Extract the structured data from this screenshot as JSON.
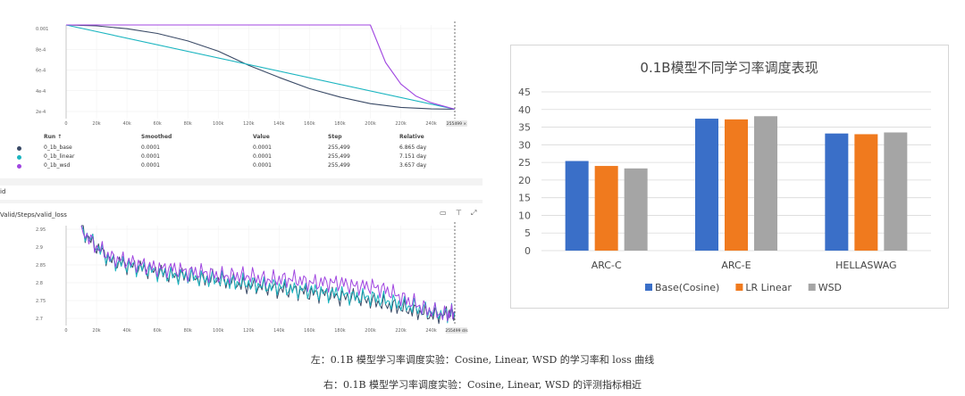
{
  "left": {
    "lr_chart": {
      "y_ticks": [
        "0.001",
        "8e-4",
        "6e-4",
        "4e-4",
        "2e-4"
      ],
      "x_ticks": [
        "0",
        "20k",
        "40k",
        "60k",
        "80k",
        "100k",
        "120k",
        "140k",
        "160k",
        "180k",
        "200k",
        "220k",
        "240k"
      ],
      "cursor_label": "255499 ×"
    },
    "table": {
      "headers": {
        "run": "Run ↑",
        "smoothed": "Smoothed",
        "value": "Value",
        "step": "Step",
        "relative": "Relative"
      },
      "rows": [
        {
          "run": "0_1b_base",
          "smoothed": "0.0001",
          "value": "0.0001",
          "step": "255,499",
          "relative": "6.865 day",
          "color": "#3a4a66"
        },
        {
          "run": "0_1b_linear",
          "smoothed": "0.0001",
          "value": "0.0001",
          "step": "255,499",
          "relative": "7.151 day",
          "color": "#1bb5c0"
        },
        {
          "run": "0_1b_wsd",
          "smoothed": "0.0001",
          "value": "0.0001",
          "step": "255,499",
          "relative": "3.657 day",
          "color": "#a046e0"
        }
      ]
    },
    "section_label": "id",
    "loss_chart": {
      "title": "Valid/Steps/valid_loss",
      "y_ticks": [
        "2.95",
        "2.9",
        "2.85",
        "2.8",
        "2.75",
        "2.7"
      ],
      "x_ticks": [
        "0",
        "20k",
        "40k",
        "60k",
        "80k",
        "100k",
        "120k",
        "140k",
        "160k",
        "180k",
        "200k",
        "220k",
        "240k"
      ],
      "cursor_label": "255499 d/s"
    }
  },
  "chart_data": [
    {
      "type": "line",
      "x_unit": "step",
      "xlim": [
        0,
        255499
      ],
      "ylim": [
        0,
        0.001
      ],
      "series": [
        {
          "name": "0_1b_base",
          "color": "#3a4a66",
          "x": [
            0,
            20000,
            40000,
            60000,
            80000,
            100000,
            120000,
            140000,
            160000,
            180000,
            200000,
            220000,
            240000,
            255499
          ],
          "y": [
            0.001,
            0.00099,
            0.00096,
            0.00091,
            0.00083,
            0.00072,
            0.00057,
            0.00044,
            0.00032,
            0.00023,
            0.00016,
            0.00012,
            0.000104,
            0.0001
          ]
        },
        {
          "name": "0_1b_linear",
          "color": "#1bb5c0",
          "x": [
            0,
            255499
          ],
          "y": [
            0.001,
            0.0001
          ]
        },
        {
          "name": "0_1b_wsd",
          "color": "#a046e0",
          "x": [
            0,
            200000,
            210000,
            220000,
            230000,
            240000,
            255499
          ],
          "y": [
            0.001,
            0.001,
            0.0006,
            0.00037,
            0.00024,
            0.00017,
            0.0001
          ]
        }
      ]
    },
    {
      "type": "line",
      "x_unit": "step",
      "xlim": [
        0,
        255499
      ],
      "ylim": [
        2.68,
        2.96
      ],
      "series": [
        {
          "name": "0_1b_base",
          "color": "#3a4a66",
          "x": [
            10000,
            20000,
            30000,
            40000,
            50000,
            60000,
            70000,
            80000,
            90000,
            100000,
            110000,
            120000,
            130000,
            140000,
            150000,
            160000,
            170000,
            180000,
            190000,
            200000,
            210000,
            220000,
            230000,
            240000,
            250000,
            255499
          ],
          "y": [
            2.95,
            2.9,
            2.86,
            2.85,
            2.84,
            2.83,
            2.82,
            2.82,
            2.81,
            2.81,
            2.8,
            2.79,
            2.79,
            2.78,
            2.78,
            2.77,
            2.77,
            2.76,
            2.76,
            2.75,
            2.74,
            2.73,
            2.72,
            2.71,
            2.71,
            2.72
          ]
        },
        {
          "name": "0_1b_linear",
          "color": "#1bb5c0",
          "x": [
            10000,
            20000,
            30000,
            40000,
            50000,
            60000,
            70000,
            80000,
            90000,
            100000,
            110000,
            120000,
            130000,
            140000,
            150000,
            160000,
            170000,
            180000,
            190000,
            200000,
            210000,
            220000,
            230000,
            240000,
            250000,
            255499
          ],
          "y": [
            2.95,
            2.9,
            2.86,
            2.85,
            2.84,
            2.83,
            2.82,
            2.82,
            2.81,
            2.81,
            2.8,
            2.8,
            2.79,
            2.79,
            2.78,
            2.78,
            2.77,
            2.77,
            2.76,
            2.76,
            2.75,
            2.74,
            2.73,
            2.72,
            2.71,
            2.72
          ]
        },
        {
          "name": "0_1b_wsd",
          "color": "#a046e0",
          "x": [
            10000,
            20000,
            30000,
            40000,
            50000,
            60000,
            70000,
            80000,
            90000,
            100000,
            110000,
            120000,
            130000,
            140000,
            150000,
            160000,
            170000,
            180000,
            190000,
            200000,
            210000,
            220000,
            230000,
            240000,
            250000,
            255499
          ],
          "y": [
            2.95,
            2.9,
            2.87,
            2.86,
            2.85,
            2.84,
            2.84,
            2.83,
            2.83,
            2.82,
            2.82,
            2.82,
            2.81,
            2.81,
            2.81,
            2.8,
            2.8,
            2.8,
            2.79,
            2.79,
            2.78,
            2.76,
            2.74,
            2.72,
            2.71,
            2.72
          ]
        }
      ]
    },
    {
      "type": "bar",
      "title": "0.1B模型不同学习率调度表现",
      "categories": [
        "ARC-C",
        "ARC-E",
        "HELLASWAG"
      ],
      "ylim": [
        0,
        45
      ],
      "y_ticks": [
        "0",
        "5",
        "10",
        "15",
        "20",
        "25",
        "30",
        "35",
        "40",
        "45"
      ],
      "grid": true,
      "legend_position": "bottom",
      "series": [
        {
          "name": "Base(Cosine)",
          "color": "#3a6fc8",
          "values": [
            25.4,
            37.4,
            33.2
          ]
        },
        {
          "name": "LR Linear",
          "color": "#f07a1e",
          "values": [
            24.0,
            37.2,
            33.0
          ]
        },
        {
          "name": "WSD",
          "color": "#a5a5a5",
          "values": [
            23.3,
            38.1,
            33.5
          ]
        }
      ]
    }
  ],
  "captions": {
    "left": "左：0.1B 模型学习率调度实验：Cosine, Linear, WSD 的学习率和 loss 曲线",
    "right": "右：0.1B 模型学习率调度实验：Cosine, Linear, WSD 的评测指标相近"
  },
  "icons": [
    "fit-screen-icon",
    "pin-icon",
    "expand-icon"
  ]
}
